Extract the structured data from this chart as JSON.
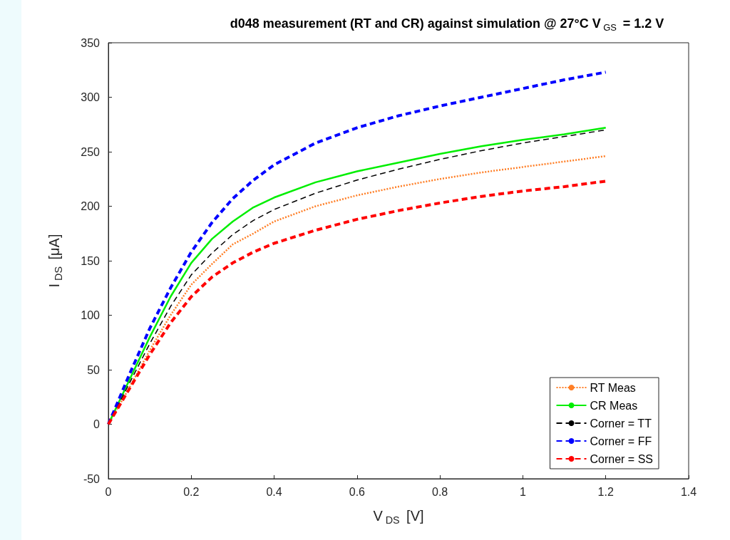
{
  "chart_data": {
    "type": "line",
    "title": "d048 measurement (RT and CR) against simulation @ 27°C V$_{GS}$ = 1.2 V",
    "xlabel": "V$_{DS}$ [V]",
    "ylabel": "I$_{DS}$ [μA]",
    "x": [
      0,
      0.05,
      0.1,
      0.15,
      0.2,
      0.25,
      0.3,
      0.35,
      0.4,
      0.5,
      0.6,
      0.7,
      0.8,
      0.9,
      1.0,
      1.1,
      1.2
    ],
    "series": [
      {
        "name": "RT Meas",
        "color": "#ff7f27",
        "line_style": "dotted",
        "values": [
          0,
          33,
          68,
          100,
          128,
          147,
          165,
          175,
          186,
          200,
          210,
          218,
          225,
          231,
          236,
          241,
          246
        ]
      },
      {
        "name": "CR Meas",
        "color": "#00ee00",
        "line_style": "solid",
        "values": [
          0,
          40,
          80,
          117,
          148,
          170,
          186,
          199,
          208,
          222,
          232,
          240,
          248,
          255,
          261,
          266,
          272
        ]
      },
      {
        "name": "Corner = TT",
        "color": "#000000",
        "line_style": "dashed",
        "values": [
          0,
          37,
          74,
          108,
          137,
          157,
          174,
          187,
          197,
          212,
          224,
          234,
          243,
          251,
          258,
          264,
          270
        ]
      },
      {
        "name": "Corner = FF",
        "color": "#0000ff",
        "line_style": "dashed",
        "values": [
          0,
          45,
          88,
          125,
          158,
          185,
          207,
          224,
          238,
          258,
          272,
          283,
          292,
          300,
          308,
          316,
          323
        ]
      },
      {
        "name": "Corner = SS",
        "color": "#ff0000",
        "line_style": "dashed",
        "values": [
          0,
          32,
          64,
          93,
          117,
          135,
          148,
          158,
          166,
          178,
          188,
          196,
          203,
          209,
          214,
          218,
          223
        ]
      }
    ],
    "xlim": [
      0,
      1.4
    ],
    "xticks": [
      0,
      0.2,
      0.4,
      0.6,
      0.8,
      1,
      1.2,
      1.4
    ],
    "ylim": [
      -50,
      350
    ],
    "yticks": [
      -50,
      0,
      50,
      100,
      150,
      200,
      250,
      300,
      350
    ],
    "grid": false,
    "legend": "bottom right",
    "marker": "none"
  }
}
